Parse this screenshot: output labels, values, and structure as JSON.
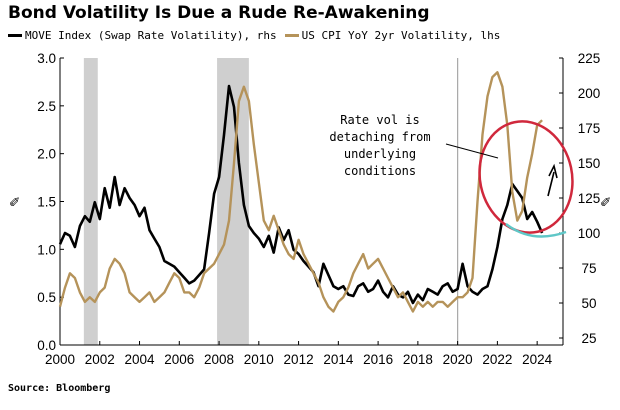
{
  "chart_data": {
    "type": "line",
    "title": "Bond Volatility Is Due a Rude Re-Awakening",
    "source": "Source: Bloomberg",
    "x_ticks": [
      "2000",
      "2002",
      "2004",
      "2006",
      "2008",
      "2010",
      "2012",
      "2014",
      "2016",
      "2018",
      "2020",
      "2022",
      "2024"
    ],
    "xlim": [
      2000,
      2025.3
    ],
    "ylim_left": [
      0,
      3.0
    ],
    "yticks_left": [
      "0.0",
      "0.5",
      "1.0",
      "1.5",
      "2.0",
      "2.5",
      "3.0"
    ],
    "ylim_right": [
      20,
      225
    ],
    "yticks_right": [
      "25",
      "50",
      "75",
      "100",
      "125",
      "150",
      "175",
      "200",
      "225"
    ],
    "recessions": [
      [
        2001.2,
        2001.9
      ],
      [
        2007.9,
        2009.5
      ]
    ],
    "vertical_line": 2020.0,
    "colors": {
      "move": "#000000",
      "cpi": "#b5935a",
      "circle": "#d0283c",
      "arc": "#5fc7c7"
    },
    "annotation": [
      "Rate vol is",
      "detaching from",
      "underlying",
      "conditions"
    ],
    "series": [
      {
        "name": "MOVE Index (Swap Rate Volatility), rhs",
        "axis": "right",
        "x": [
          2000.0,
          2000.25,
          2000.5,
          2000.75,
          2001.0,
          2001.25,
          2001.5,
          2001.75,
          2002.0,
          2002.25,
          2002.5,
          2002.75,
          2003.0,
          2003.25,
          2003.5,
          2003.75,
          2004.0,
          2004.25,
          2004.5,
          2004.75,
          2005.0,
          2005.25,
          2005.5,
          2005.75,
          2006.0,
          2006.25,
          2006.5,
          2006.75,
          2007.0,
          2007.25,
          2007.5,
          2007.75,
          2008.0,
          2008.25,
          2008.5,
          2008.75,
          2009.0,
          2009.25,
          2009.5,
          2009.75,
          2010.0,
          2010.25,
          2010.5,
          2010.75,
          2011.0,
          2011.25,
          2011.5,
          2011.75,
          2012.0,
          2012.25,
          2012.5,
          2012.75,
          2013.0,
          2013.25,
          2013.5,
          2013.75,
          2014.0,
          2014.25,
          2014.5,
          2014.75,
          2015.0,
          2015.25,
          2015.5,
          2015.75,
          2016.0,
          2016.25,
          2016.5,
          2016.75,
          2017.0,
          2017.25,
          2017.5,
          2017.75,
          2018.0,
          2018.25,
          2018.5,
          2018.75,
          2019.0,
          2019.25,
          2019.5,
          2019.75,
          2020.0,
          2020.25,
          2020.5,
          2020.75,
          2021.0,
          2021.25,
          2021.5,
          2021.75,
          2022.0,
          2022.25,
          2022.5,
          2022.75,
          2023.0,
          2023.25,
          2023.5,
          2023.75,
          2024.0,
          2024.25
        ],
        "values": [
          92,
          100,
          98,
          90,
          105,
          112,
          108,
          122,
          110,
          132,
          118,
          140,
          120,
          132,
          125,
          120,
          112,
          118,
          102,
          96,
          90,
          80,
          78,
          76,
          72,
          68,
          64,
          66,
          70,
          74,
          100,
          128,
          140,
          170,
          205,
          190,
          150,
          120,
          105,
          100,
          96,
          90,
          98,
          86,
          104,
          95,
          102,
          88,
          85,
          80,
          76,
          72,
          62,
          78,
          70,
          62,
          60,
          62,
          56,
          55,
          62,
          64,
          58,
          60,
          66,
          58,
          54,
          62,
          56,
          54,
          58,
          50,
          56,
          52,
          60,
          58,
          56,
          62,
          64,
          58,
          60,
          78,
          62,
          58,
          56,
          60,
          62,
          74,
          90,
          110,
          120,
          135,
          130,
          125,
          110,
          115,
          108,
          100
        ]
      },
      {
        "name": "US CPI YoY 2yr Volatility, lhs",
        "axis": "left",
        "x": [
          2000.0,
          2000.25,
          2000.5,
          2000.75,
          2001.0,
          2001.25,
          2001.5,
          2001.75,
          2002.0,
          2002.25,
          2002.5,
          2002.75,
          2003.0,
          2003.25,
          2003.5,
          2003.75,
          2004.0,
          2004.25,
          2004.5,
          2004.75,
          2005.0,
          2005.25,
          2005.5,
          2005.75,
          2006.0,
          2006.25,
          2006.5,
          2006.75,
          2007.0,
          2007.25,
          2007.5,
          2007.75,
          2008.0,
          2008.25,
          2008.5,
          2008.75,
          2009.0,
          2009.25,
          2009.5,
          2009.75,
          2010.0,
          2010.25,
          2010.5,
          2010.75,
          2011.0,
          2011.25,
          2011.5,
          2011.75,
          2012.0,
          2012.25,
          2012.5,
          2012.75,
          2013.0,
          2013.25,
          2013.5,
          2013.75,
          2014.0,
          2014.25,
          2014.5,
          2014.75,
          2015.0,
          2015.25,
          2015.5,
          2015.75,
          2016.0,
          2016.25,
          2016.5,
          2016.75,
          2017.0,
          2017.25,
          2017.5,
          2017.75,
          2018.0,
          2018.25,
          2018.5,
          2018.75,
          2019.0,
          2019.25,
          2019.5,
          2019.75,
          2020.0,
          2020.25,
          2020.5,
          2020.75,
          2021.0,
          2021.25,
          2021.5,
          2021.75,
          2022.0,
          2022.25,
          2022.5,
          2022.75,
          2023.0,
          2023.25,
          2023.5,
          2023.75,
          2024.0,
          2024.25
        ],
        "values": [
          0.4,
          0.6,
          0.75,
          0.7,
          0.55,
          0.45,
          0.5,
          0.45,
          0.55,
          0.6,
          0.8,
          0.9,
          0.85,
          0.75,
          0.55,
          0.5,
          0.45,
          0.5,
          0.55,
          0.45,
          0.5,
          0.55,
          0.65,
          0.75,
          0.7,
          0.55,
          0.55,
          0.5,
          0.6,
          0.75,
          0.8,
          0.85,
          0.95,
          1.05,
          1.3,
          1.9,
          2.55,
          2.7,
          2.55,
          2.1,
          1.7,
          1.3,
          1.2,
          1.35,
          1.2,
          1.05,
          0.95,
          0.9,
          1.1,
          0.95,
          0.85,
          0.75,
          0.65,
          0.5,
          0.4,
          0.35,
          0.45,
          0.5,
          0.6,
          0.75,
          0.85,
          0.95,
          0.8,
          0.85,
          0.9,
          0.8,
          0.7,
          0.6,
          0.5,
          0.55,
          0.45,
          0.35,
          0.45,
          0.4,
          0.45,
          0.4,
          0.45,
          0.45,
          0.4,
          0.45,
          0.5,
          0.5,
          0.55,
          0.7,
          1.5,
          2.2,
          2.6,
          2.8,
          2.85,
          2.7,
          2.3,
          1.6,
          1.3,
          1.4,
          1.75,
          2.0,
          2.3,
          2.35
        ]
      }
    ]
  }
}
